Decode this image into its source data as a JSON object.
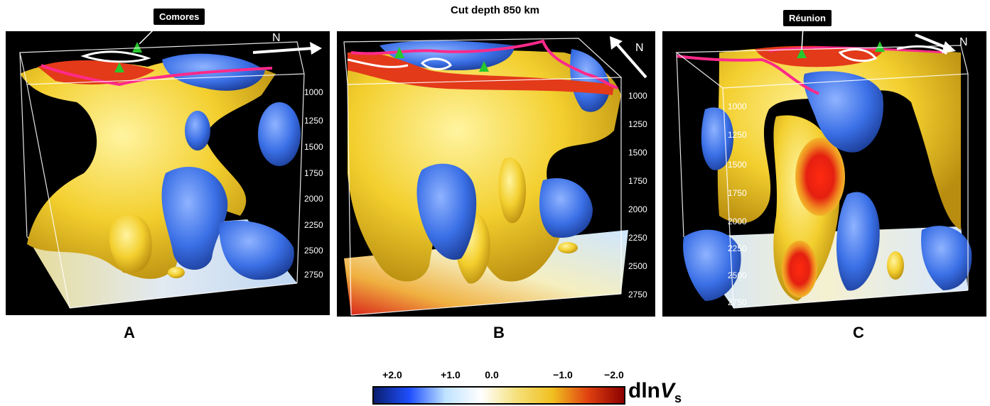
{
  "figure_title": "Cut depth 850 km",
  "panels": [
    {
      "label": "A",
      "callout": "Comores",
      "compass": "N",
      "depth_ticks": [
        "1000",
        "1250",
        "1500",
        "1750",
        "2000",
        "2250",
        "2500",
        "2750"
      ]
    },
    {
      "label": "B",
      "callout": "",
      "compass": "N",
      "depth_ticks": [
        "1000",
        "1250",
        "1500",
        "1750",
        "2000",
        "2250",
        "2500",
        "2750"
      ]
    },
    {
      "label": "C",
      "callout": "Réunion",
      "compass": "N",
      "depth_ticks": [
        "1000",
        "1250",
        "1500",
        "1750",
        "2000",
        "2250",
        "2500",
        "2750"
      ]
    }
  ],
  "colorbar": {
    "ticks": [
      "+2.0",
      "+1.0",
      "0.0",
      "−1.0",
      "−2.0"
    ],
    "quantity_prefix": "dln",
    "quantity_var": "V",
    "quantity_sub": "s",
    "colors": [
      "#0a1e6e",
      "#1f4fff",
      "#bfe3ff",
      "#ffffff",
      "#f5e07a",
      "#f0c020",
      "#e04010",
      "#8c0000"
    ]
  }
}
